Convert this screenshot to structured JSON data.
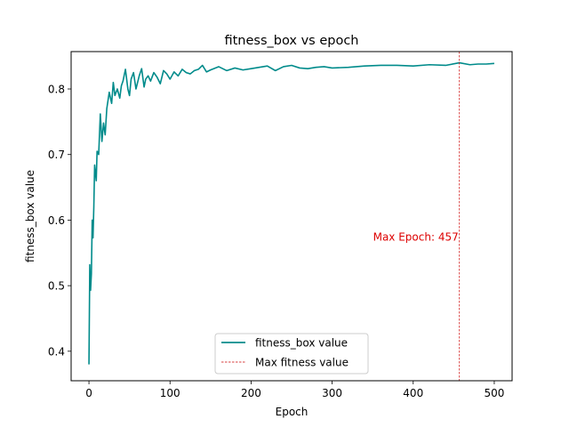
{
  "chart_data": {
    "type": "line",
    "title": "fitness_box vs epoch",
    "xlabel": "Epoch",
    "ylabel": "fitness_box value",
    "xlim": [
      -22,
      522
    ],
    "ylim": [
      0.355,
      0.857
    ],
    "xticks": [
      0,
      100,
      200,
      300,
      400,
      500
    ],
    "yticks": [
      0.4,
      0.5,
      0.6,
      0.7,
      0.8
    ],
    "grid": false,
    "legend_position": "bottom-center",
    "series": [
      {
        "name": "fitness_box value",
        "color": "#008b8b",
        "x": [
          0,
          1,
          2,
          3,
          4,
          5,
          6,
          7,
          8,
          9,
          10,
          12,
          14,
          16,
          18,
          20,
          22,
          25,
          28,
          30,
          32,
          35,
          38,
          40,
          42,
          45,
          48,
          50,
          52,
          55,
          58,
          60,
          62,
          65,
          68,
          70,
          73,
          76,
          80,
          84,
          88,
          92,
          96,
          100,
          105,
          110,
          115,
          120,
          125,
          130,
          135,
          140,
          145,
          150,
          160,
          170,
          180,
          190,
          200,
          210,
          220,
          230,
          240,
          250,
          260,
          270,
          280,
          290,
          300,
          320,
          340,
          360,
          380,
          400,
          420,
          440,
          457,
          470,
          480,
          490,
          500
        ],
        "y": [
          0.38,
          0.532,
          0.493,
          0.518,
          0.6,
          0.573,
          0.62,
          0.684,
          0.672,
          0.66,
          0.705,
          0.7,
          0.762,
          0.72,
          0.748,
          0.73,
          0.77,
          0.795,
          0.778,
          0.81,
          0.79,
          0.8,
          0.786,
          0.805,
          0.812,
          0.83,
          0.8,
          0.79,
          0.815,
          0.825,
          0.8,
          0.81,
          0.82,
          0.831,
          0.803,
          0.815,
          0.82,
          0.812,
          0.825,
          0.818,
          0.808,
          0.828,
          0.823,
          0.815,
          0.826,
          0.82,
          0.83,
          0.825,
          0.823,
          0.828,
          0.83,
          0.836,
          0.826,
          0.829,
          0.834,
          0.828,
          0.832,
          0.829,
          0.831,
          0.833,
          0.835,
          0.828,
          0.834,
          0.836,
          0.832,
          0.831,
          0.833,
          0.834,
          0.832,
          0.833,
          0.835,
          0.836,
          0.836,
          0.835,
          0.837,
          0.836,
          0.84,
          0.837,
          0.838,
          0.838,
          0.839
        ]
      }
    ],
    "reference_lines": [
      {
        "name": "Max fitness value",
        "orientation": "vertical",
        "x": 457,
        "color": "#cc0000",
        "style": "dashed"
      }
    ],
    "annotations": [
      {
        "text": "Max Epoch: 457",
        "x": 457,
        "y": 0.575,
        "color": "#dd0000"
      }
    ]
  }
}
